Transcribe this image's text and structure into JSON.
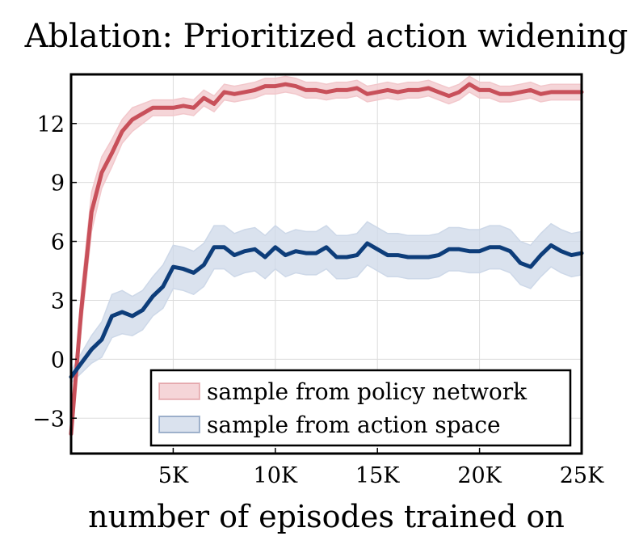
{
  "chart_data": {
    "type": "line",
    "title": "Ablation: Prioritized action widening",
    "xlabel": "number of episodes trained on",
    "ylabel": "",
    "xlim": [
      0,
      25000
    ],
    "ylim": [
      -4.8,
      14.5
    ],
    "grid": true,
    "legend_position": "bottom-right",
    "xticks": [
      5000,
      10000,
      15000,
      20000,
      25000
    ],
    "xtick_labels": [
      "5K",
      "10K",
      "15K",
      "20K",
      "25K"
    ],
    "yticks": [
      -3,
      0,
      3,
      6,
      9,
      12
    ],
    "ytick_labels": [
      "−3",
      "0",
      "3",
      "6",
      "9",
      "12"
    ],
    "x": [
      0,
      500,
      1000,
      1500,
      2000,
      2500,
      3000,
      3500,
      4000,
      4500,
      5000,
      5500,
      6000,
      6500,
      7000,
      7500,
      8000,
      8500,
      9000,
      9500,
      10000,
      10500,
      11000,
      11500,
      12000,
      12500,
      13000,
      13500,
      14000,
      14500,
      15000,
      15500,
      16000,
      16500,
      17000,
      17500,
      18000,
      18500,
      19000,
      19500,
      20000,
      20500,
      21000,
      21500,
      22000,
      22500,
      23000,
      23500,
      24000,
      24500,
      25000
    ],
    "series": [
      {
        "name": "sample from policy network",
        "color": "#c8505a",
        "band_color": "#f2c7cb",
        "values": [
          -3.8,
          2.5,
          7.5,
          9.5,
          10.5,
          11.6,
          12.2,
          12.5,
          12.8,
          12.8,
          12.8,
          12.9,
          12.8,
          13.3,
          13.0,
          13.6,
          13.5,
          13.6,
          13.7,
          13.9,
          13.9,
          14.0,
          13.9,
          13.7,
          13.7,
          13.6,
          13.7,
          13.7,
          13.8,
          13.5,
          13.6,
          13.7,
          13.6,
          13.7,
          13.7,
          13.8,
          13.6,
          13.4,
          13.6,
          14.0,
          13.7,
          13.7,
          13.5,
          13.5,
          13.6,
          13.7,
          13.5,
          13.6,
          13.6,
          13.6,
          13.6
        ],
        "band": [
          0.4,
          0.9,
          1.0,
          0.8,
          0.7,
          0.6,
          0.6,
          0.5,
          0.4,
          0.4,
          0.4,
          0.4,
          0.4,
          0.4,
          0.4,
          0.4,
          0.4,
          0.4,
          0.4,
          0.4,
          0.4,
          0.4,
          0.4,
          0.4,
          0.4,
          0.4,
          0.4,
          0.4,
          0.4,
          0.4,
          0.4,
          0.4,
          0.4,
          0.4,
          0.4,
          0.4,
          0.4,
          0.4,
          0.4,
          0.4,
          0.4,
          0.4,
          0.4,
          0.4,
          0.4,
          0.4,
          0.4,
          0.4,
          0.4,
          0.4,
          0.4
        ]
      },
      {
        "name": "sample from action space",
        "color": "#0d3d7a",
        "band_color": "#cdd8e8",
        "values": [
          -0.9,
          -0.2,
          0.5,
          1.0,
          2.2,
          2.4,
          2.2,
          2.5,
          3.2,
          3.7,
          4.7,
          4.6,
          4.4,
          4.8,
          5.7,
          5.7,
          5.3,
          5.5,
          5.6,
          5.2,
          5.7,
          5.3,
          5.5,
          5.4,
          5.4,
          5.7,
          5.2,
          5.2,
          5.3,
          5.9,
          5.6,
          5.3,
          5.3,
          5.2,
          5.2,
          5.2,
          5.3,
          5.6,
          5.6,
          5.5,
          5.5,
          5.7,
          5.7,
          5.5,
          4.9,
          4.7,
          5.3,
          5.8,
          5.5,
          5.3,
          5.4
        ],
        "band": [
          0.3,
          0.5,
          0.7,
          0.9,
          1.1,
          1.1,
          1.0,
          1.0,
          1.0,
          1.1,
          1.1,
          1.1,
          1.1,
          1.1,
          1.1,
          1.1,
          1.1,
          1.1,
          1.1,
          1.1,
          1.1,
          1.1,
          1.1,
          1.1,
          1.1,
          1.1,
          1.1,
          1.1,
          1.1,
          1.1,
          1.1,
          1.1,
          1.1,
          1.1,
          1.1,
          1.1,
          1.1,
          1.1,
          1.1,
          1.1,
          1.1,
          1.1,
          1.1,
          1.1,
          1.1,
          1.1,
          1.1,
          1.1,
          1.1,
          1.1,
          1.1
        ]
      }
    ]
  }
}
